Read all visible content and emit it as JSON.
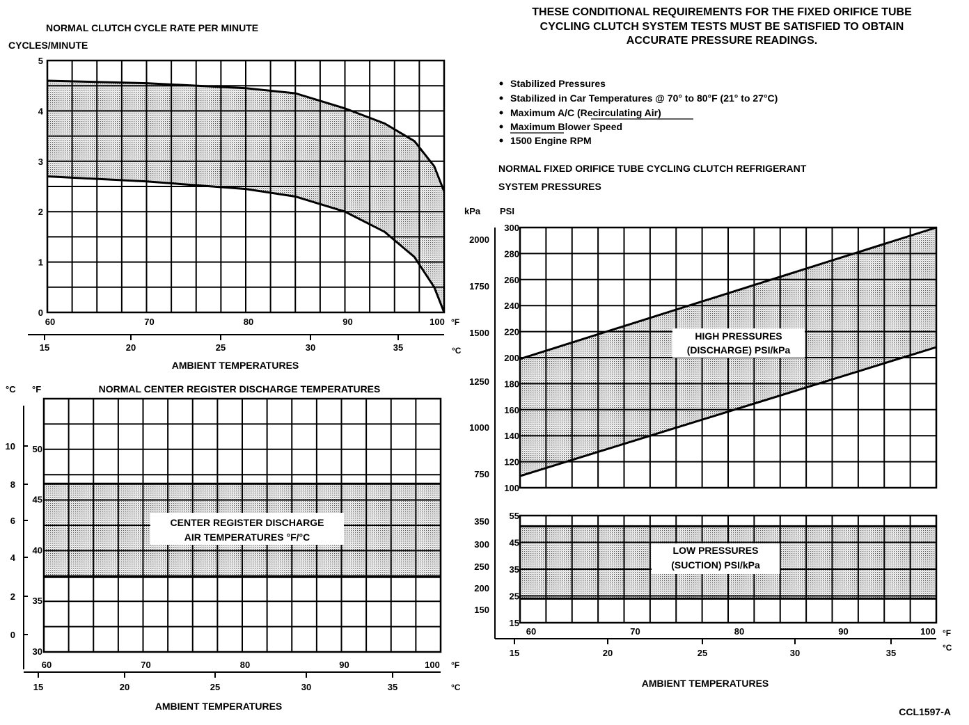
{
  "header": {
    "lines": [
      "THESE CONDITIONAL REQUIREMENTS FOR THE FIXED ORIFICE TUBE",
      "CYCLING CLUTCH SYSTEM TESTS MUST BE SATISFIED TO OBTAIN",
      "ACCURATE PRESSURE READINGS."
    ],
    "bullets": [
      "Stabilized Pressures",
      "Stabilized in Car Temperatures @ 70° to 80°F (21° to 27°C)",
      "Maximum A/C (Recirculating Air)",
      "Maximum Blower Speed",
      "1500 Engine RPM"
    ]
  },
  "footer_code": "CCL1597-A",
  "chart_data": [
    {
      "type": "area",
      "title": "NORMAL CLUTCH CYCLE RATE PER MINUTE",
      "ylabel": "CYCLES/MINUTE",
      "xlabel": "AMBIENT TEMPERATURES",
      "x_unit_f": "°F",
      "x_ticks_f": [
        60,
        70,
        80,
        90,
        100
      ],
      "x_ticks_c": [
        15,
        20,
        25,
        30,
        35
      ],
      "y_ticks": [
        0,
        1,
        2,
        3,
        4,
        5
      ],
      "xlim": [
        60,
        100
      ],
      "ylim": [
        0,
        5
      ],
      "series": [
        {
          "name": "upper",
          "x": [
            60,
            70,
            80,
            85,
            90,
            94,
            97,
            99,
            100
          ],
          "y": [
            4.6,
            4.55,
            4.45,
            4.35,
            4.05,
            3.75,
            3.4,
            2.9,
            2.4
          ]
        },
        {
          "name": "lower",
          "x": [
            60,
            70,
            80,
            85,
            90,
            94,
            97,
            99,
            100
          ],
          "y": [
            2.7,
            2.6,
            2.45,
            2.3,
            2.0,
            1.6,
            1.1,
            0.5,
            0.0
          ]
        }
      ]
    },
    {
      "type": "area",
      "title": "NORMAL CENTER REGISTER DISCHARGE TEMPERATURES",
      "band_label": [
        "CENTER REGISTER DISCHARGE",
        "AIR TEMPERATURES °F/°C"
      ],
      "xlabel": "AMBIENT TEMPERATURES",
      "y_unit_c": "°C",
      "y_unit_f": "°F",
      "x_unit_f": "°F",
      "x_unit_c": "°C",
      "x_ticks_f": [
        60,
        70,
        80,
        90,
        100
      ],
      "x_ticks_c": [
        15,
        20,
        25,
        30,
        35
      ],
      "y_ticks_f": [
        30,
        35,
        40,
        45,
        50
      ],
      "y_ticks_c": [
        0,
        2,
        4,
        6,
        8,
        10
      ],
      "xlim": [
        60,
        100
      ],
      "ylim": [
        30,
        55
      ],
      "band": {
        "low": 37.4,
        "high": 46.6
      }
    },
    {
      "type": "area",
      "title": "NORMAL FIXED ORIFICE TUBE CYCLING CLUTCH REFRIGERANT SYSTEM PRESSURES",
      "band_label": [
        "HIGH PRESSURES",
        "(DISCHARGE) PSI/kPa"
      ],
      "y_unit_kpa": "kPa",
      "y_unit_psi": "PSI",
      "y_ticks_psi": [
        100,
        120,
        140,
        160,
        180,
        200,
        220,
        240,
        260,
        280,
        300
      ],
      "y_ticks_kpa": [
        750,
        1000,
        1250,
        1500,
        1750,
        2000
      ],
      "xlim": [
        60,
        100
      ],
      "ylim": [
        100,
        300
      ],
      "series": [
        {
          "name": "upper",
          "x": [
            60,
            100
          ],
          "y": [
            199,
            300
          ]
        },
        {
          "name": "lower",
          "x": [
            60,
            100
          ],
          "y": [
            109,
            208
          ]
        }
      ]
    },
    {
      "type": "area",
      "band_label": [
        "LOW PRESSURES",
        "(SUCTION) PSI/kPa"
      ],
      "xlabel": "AMBIENT TEMPERATURES",
      "x_unit_f": "°F",
      "x_unit_c": "°C",
      "x_ticks_f": [
        60,
        70,
        80,
        90,
        100
      ],
      "x_ticks_c": [
        15,
        20,
        25,
        30,
        35
      ],
      "y_ticks_psi": [
        15,
        25,
        35,
        45,
        55
      ],
      "y_ticks_kpa": [
        150,
        200,
        250,
        300,
        350
      ],
      "xlim": [
        60,
        100
      ],
      "ylim": [
        15,
        55
      ],
      "band": {
        "low": 24,
        "high": 51
      }
    }
  ]
}
